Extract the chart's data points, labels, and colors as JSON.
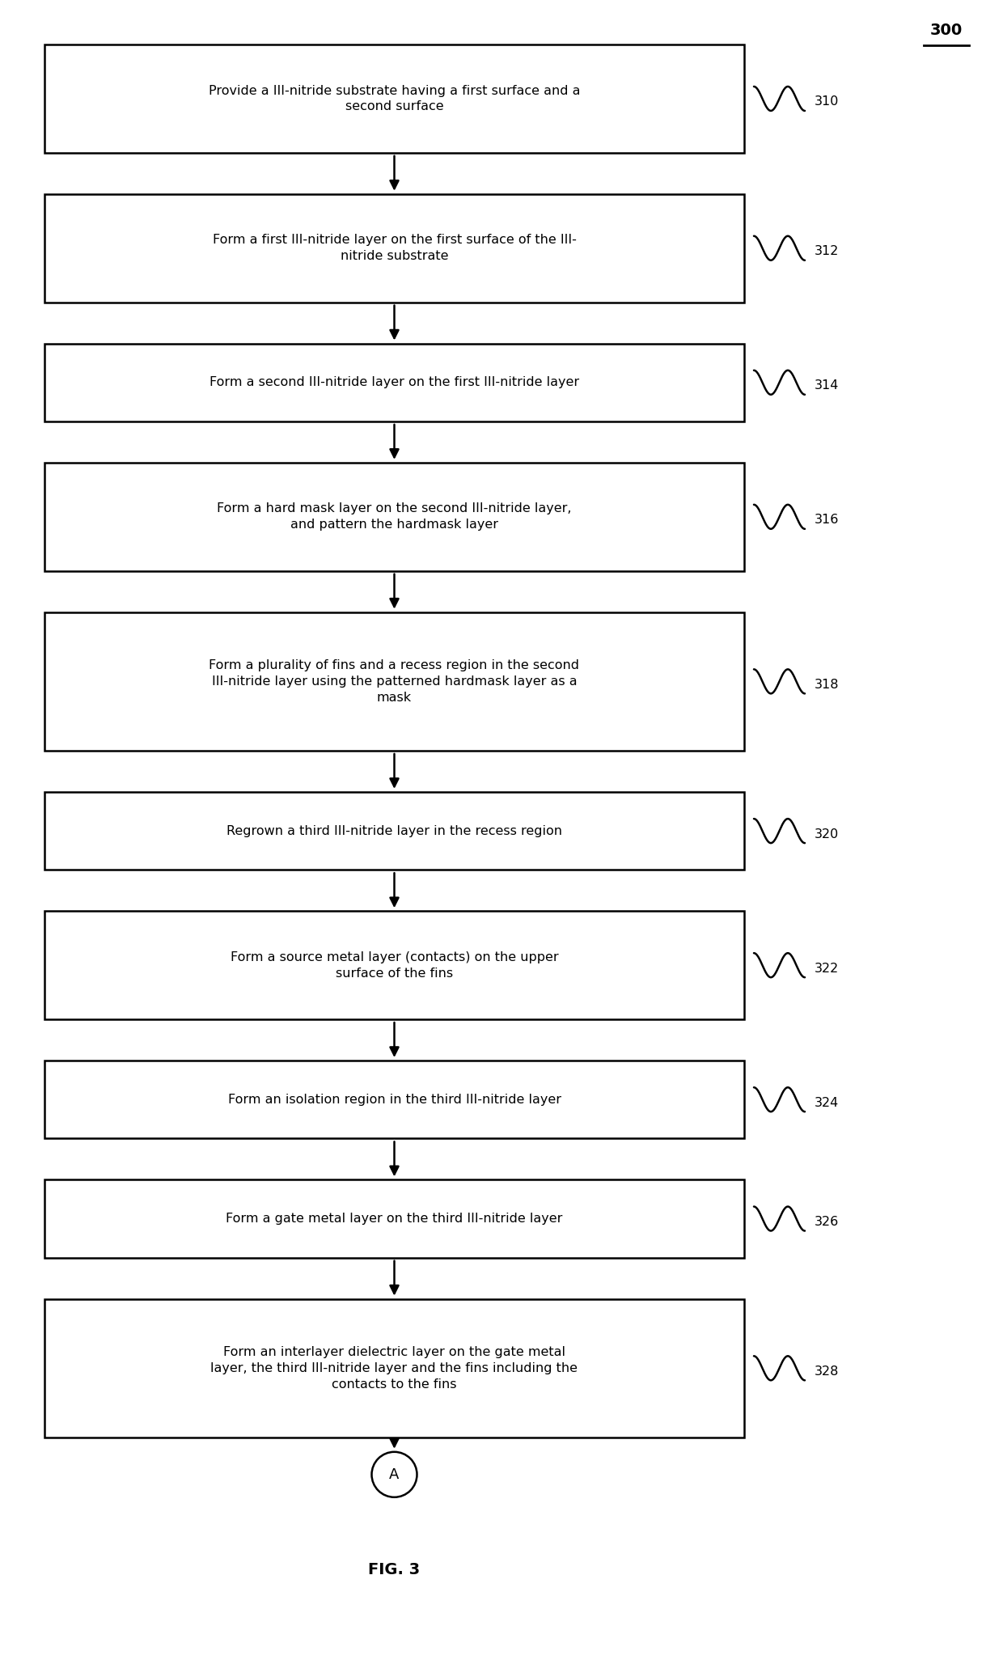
{
  "title": "FIG. 3",
  "diagram_number": "300",
  "background_color": "#ffffff",
  "box_edge_color": "#000000",
  "box_fill_color": "#ffffff",
  "text_color": "#000000",
  "arrow_color": "#000000",
  "font_size": 11.5,
  "label_font_size": 11.5,
  "steps": [
    {
      "label": "310",
      "text": "Provide a III-nitride substrate having a first surface and a\nsecond surface",
      "lines": 2
    },
    {
      "label": "312",
      "text": "Form a first III-nitride layer on the first surface of the III-\nnitride substrate",
      "lines": 2
    },
    {
      "label": "314",
      "text": "Form a second III-nitride layer on the first III-nitride layer",
      "lines": 1
    },
    {
      "label": "316",
      "text": "Form a hard mask layer on the second III-nitride layer,\nand pattern the hardmask layer",
      "lines": 2
    },
    {
      "label": "318",
      "text": "Form a plurality of fins and a recess region in the second\nIII-nitride layer using the patterned hardmask layer as a\nmask",
      "lines": 3
    },
    {
      "label": "320",
      "text": "Regrown a third III-nitride layer in the recess region",
      "lines": 1
    },
    {
      "label": "322",
      "text": "Form a source metal layer (contacts) on the upper\nsurface of the fins",
      "lines": 2
    },
    {
      "label": "324",
      "text": "Form an isolation region in the third III-nitride layer",
      "lines": 1
    },
    {
      "label": "326",
      "text": "Form a gate metal layer on the third III-nitride layer",
      "lines": 1
    },
    {
      "label": "328",
      "text": "Form an interlayer dielectric layer on the gate metal\nlayer, the third III-nitride layer and the fins including the\ncontacts to the fins",
      "lines": 3
    }
  ],
  "connector_label": "A",
  "fig_width": 12.4,
  "fig_height": 20.57
}
